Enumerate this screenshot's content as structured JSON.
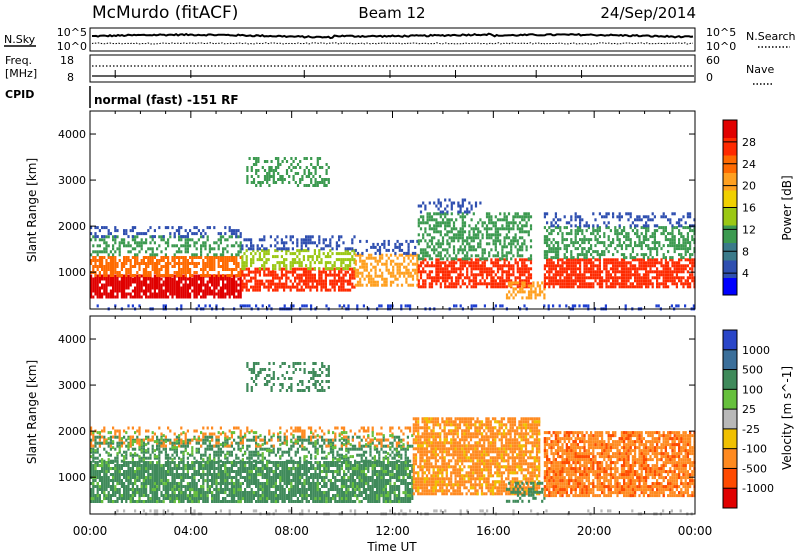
{
  "header": {
    "station": "McMurdo (fitACF)",
    "beam": "Beam 12",
    "date": "24/Sep/2014"
  },
  "noise_panel": {
    "left_label": "N.Sky",
    "right_label": "N.Search",
    "y_top_label": "10^5",
    "y_bottom_label": "10^0",
    "right_top_label": "10^5",
    "right_bottom_label": "10^0"
  },
  "freq_panel": {
    "left_label_line1": "Freq.",
    "left_label_line2": "[MHz]",
    "left_top": "18",
    "left_bottom": "8",
    "right_label": "Nave",
    "right_top": "60",
    "right_bottom": "0"
  },
  "cpid_panel": {
    "label": "CPID",
    "mode_text": "normal (fast) -151 RF"
  },
  "x_axis": {
    "label": "Time UT",
    "ticks": [
      "00:00",
      "04:00",
      "08:00",
      "12:00",
      "16:00",
      "20:00",
      "00:00"
    ]
  },
  "chart_data": [
    {
      "type": "heatmap",
      "name": "power",
      "ylabel": "Slant Range [km]",
      "xlabel": "Time UT",
      "x_range_hours": [
        0,
        24
      ],
      "ylim": [
        200,
        4500
      ],
      "y_ticks": [
        1000,
        2000,
        3000,
        4000
      ],
      "colorbar_label": "Power [dB]",
      "colorbar_ticks": [
        "4",
        "8",
        "12",
        "16",
        "20",
        "24",
        "28"
      ],
      "colorbar_colors": [
        "#0000ff",
        "#2f4fb0",
        "#3a7a8a",
        "#3c9a50",
        "#9bc814",
        "#f0d000",
        "#ffa020",
        "#ff6a00",
        "#ff2a00",
        "#e00000"
      ],
      "colorbar_range": [
        0,
        32
      ],
      "bands": [
        {
          "t0": 0.0,
          "t1": 24.0,
          "r0": 200,
          "r1": 300,
          "color": "#1f3fd0",
          "density": 0.25
        },
        {
          "t0": 0.0,
          "t1": 6.0,
          "r0": 450,
          "r1": 950,
          "color": "#e00000",
          "density": 0.85
        },
        {
          "t0": 0.0,
          "t1": 6.0,
          "r0": 950,
          "r1": 1350,
          "color": "#ff6a00",
          "density": 0.7
        },
        {
          "t0": 0.0,
          "t1": 6.0,
          "r0": 1350,
          "r1": 1800,
          "color": "#3c9a50",
          "density": 0.45
        },
        {
          "t0": 0.0,
          "t1": 6.0,
          "r0": 1800,
          "r1": 2000,
          "color": "#2f4fb0",
          "density": 0.35
        },
        {
          "t0": 6.0,
          "t1": 10.5,
          "r0": 600,
          "r1": 1100,
          "color": "#ff2a00",
          "density": 0.7
        },
        {
          "t0": 6.0,
          "t1": 10.5,
          "r0": 1100,
          "r1": 1500,
          "color": "#9bc814",
          "density": 0.5
        },
        {
          "t0": 6.0,
          "t1": 10.5,
          "r0": 1500,
          "r1": 1800,
          "color": "#2f4fb0",
          "density": 0.35
        },
        {
          "t0": 6.2,
          "t1": 9.5,
          "r0": 2900,
          "r1": 3500,
          "color": "#3c9a50",
          "density": 0.35
        },
        {
          "t0": 10.5,
          "t1": 13.0,
          "r0": 700,
          "r1": 1400,
          "color": "#ffa020",
          "density": 0.55
        },
        {
          "t0": 10.5,
          "t1": 13.0,
          "r0": 1400,
          "r1": 1700,
          "color": "#2f4fb0",
          "density": 0.35
        },
        {
          "t0": 13.0,
          "t1": 17.5,
          "r0": 700,
          "r1": 1300,
          "color": "#ff2a00",
          "density": 0.7
        },
        {
          "t0": 13.0,
          "t1": 17.5,
          "r0": 1300,
          "r1": 2300,
          "color": "#3c9a50",
          "density": 0.5
        },
        {
          "t0": 13.0,
          "t1": 15.5,
          "r0": 2300,
          "r1": 2600,
          "color": "#2f4fb0",
          "density": 0.3
        },
        {
          "t0": 16.5,
          "t1": 18.0,
          "r0": 450,
          "r1": 800,
          "color": "#ffa020",
          "density": 0.6
        },
        {
          "t0": 18.0,
          "t1": 24.0,
          "r0": 650,
          "r1": 1300,
          "color": "#ff2a00",
          "density": 0.75
        },
        {
          "t0": 18.0,
          "t1": 24.0,
          "r0": 1300,
          "r1": 2000,
          "color": "#3c9a50",
          "density": 0.5
        },
        {
          "t0": 18.0,
          "t1": 24.0,
          "r0": 2000,
          "r1": 2300,
          "color": "#2f4fb0",
          "density": 0.35
        }
      ]
    },
    {
      "type": "heatmap",
      "name": "velocity",
      "ylabel": "Slant Range [km]",
      "xlabel": "Time UT",
      "x_range_hours": [
        0,
        24
      ],
      "ylim": [
        200,
        4500
      ],
      "y_ticks": [
        1000,
        2000,
        3000,
        4000
      ],
      "colorbar_label": "Velocity [m s^-1]",
      "colorbar_ticks": [
        "1000",
        "500",
        "100",
        "25",
        "-25",
        "-100",
        "-500",
        "-1000"
      ],
      "colorbar_colors": [
        "#2a46c8",
        "#3b6f9a",
        "#3f8a5a",
        "#66c03c",
        "#b8b8b8",
        "#f0c000",
        "#ff8a20",
        "#ff4a00",
        "#e00000"
      ],
      "bands": [
        {
          "t0": 0.0,
          "t1": 24.0,
          "r0": 200,
          "r1": 300,
          "color": "#b8b8b8",
          "density": 0.15
        },
        {
          "t0": 0.0,
          "t1": 12.8,
          "r0": 500,
          "r1": 1350,
          "color": "#3f8a5a",
          "density": 0.8
        },
        {
          "t0": 0.0,
          "t1": 12.8,
          "r0": 1350,
          "r1": 1900,
          "color": "#3f8a5a",
          "density": 0.45
        },
        {
          "t0": 0.0,
          "t1": 12.8,
          "r0": 1700,
          "r1": 2100,
          "color": "#ff8a20",
          "density": 0.25
        },
        {
          "t0": 0.0,
          "t1": 12.8,
          "r0": 500,
          "r1": 2000,
          "color": "#66c03c",
          "density": 0.12
        },
        {
          "t0": 6.2,
          "t1": 9.5,
          "r0": 2900,
          "r1": 3500,
          "color": "#3f8a5a",
          "density": 0.3
        },
        {
          "t0": 12.8,
          "t1": 17.8,
          "r0": 650,
          "r1": 2300,
          "color": "#ff8a20",
          "density": 0.75
        },
        {
          "t0": 12.8,
          "t1": 17.8,
          "r0": 650,
          "r1": 2300,
          "color": "#f0c000",
          "density": 0.12
        },
        {
          "t0": 16.5,
          "t1": 18.0,
          "r0": 450,
          "r1": 900,
          "color": "#3f8a5a",
          "density": 0.5
        },
        {
          "t0": 18.0,
          "t1": 24.0,
          "r0": 600,
          "r1": 2000,
          "color": "#ff8a20",
          "density": 0.75
        },
        {
          "t0": 18.0,
          "t1": 24.0,
          "r0": 600,
          "r1": 2000,
          "color": "#ff4a00",
          "density": 0.2
        }
      ]
    }
  ]
}
